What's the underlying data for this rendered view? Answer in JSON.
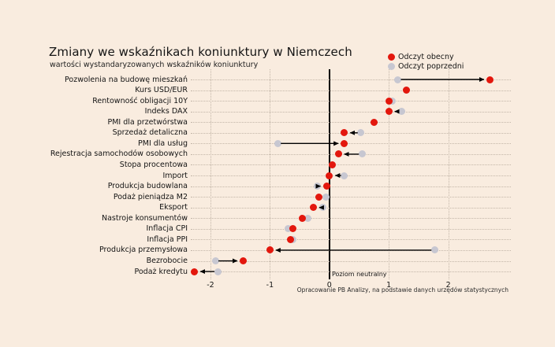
{
  "title": "Zmiany we wskaźnikach koniunktury w Niemczech",
  "subtitle": "wartości wystandaryzowanych wskaźników koniunktury",
  "legend": {
    "current": "Odczyt obecny",
    "previous": "Odczyt poprzedni"
  },
  "annotations": {
    "zero_line_label": "Poziom neutralny",
    "caption": "Opracowanie PB Analizy, na podstawie danych urzędów statystycznych"
  },
  "colors": {
    "background": "#f9ecdf",
    "current": "#e3170d",
    "previous": "#c7c7d1",
    "grid": "#c3b6a8",
    "zero_line": "#000000",
    "arrow": "#000000",
    "text": "#141414"
  },
  "chart_data": {
    "type": "scatter",
    "variant": "horizontal-dot-plot-with-change-arrows",
    "title": "Zmiany we wskaźnikach koniunktury w Niemczech",
    "subtitle": "wartości wystandaryzowanych wskaźników koniunktury",
    "xlabel": "",
    "ylabel": "",
    "xlim": [
      -2.35,
      3.0
    ],
    "xticks": [
      -2,
      -1,
      0,
      1,
      2
    ],
    "grid": "dotted",
    "legend_position": "top-right",
    "zero_line_label": "Poziom neutralny",
    "caption": "Opracowanie PB Analizy, na podstawie danych urzędów statystycznych",
    "categories": [
      "Pozwolenia na budowę mieszkań",
      "Kurs USD/EUR",
      "Rentowność obligacji 10Y",
      "Indeks DAX",
      "PMI dla przetwórstwa",
      "Sprzedaż detaliczna",
      "PMI dla usług",
      "Rejestracja samochodów osobowych",
      "Stopa procentowa",
      "Import",
      "Produkcja budowlana",
      "Podaż pieniądza M2",
      "Eksport",
      "Nastroje konsumentów",
      "Inflacja CPI",
      "Inflacja PPI",
      "Produkcja przemysłowa",
      "Bezrobocie",
      "Podaż kredytu"
    ],
    "series": [
      {
        "name": "Odczyt obecny",
        "color": "#e3170d",
        "values": [
          2.7,
          1.3,
          1.0,
          1.0,
          0.75,
          0.25,
          0.25,
          0.15,
          0.05,
          0.0,
          -0.05,
          -0.17,
          -0.27,
          -0.45,
          -0.62,
          -0.66,
          -1.0,
          -1.45,
          -2.27
        ]
      },
      {
        "name": "Odczyt poprzedni",
        "color": "#c7c7d1",
        "values": [
          1.15,
          1.3,
          1.06,
          1.22,
          0.75,
          0.53,
          -0.87,
          0.55,
          0.05,
          0.25,
          -0.2,
          -0.06,
          -0.11,
          -0.36,
          -0.7,
          -0.61,
          1.77,
          -1.92,
          -1.88
        ]
      }
    ],
    "arrow_from_previous_to_current": [
      true,
      false,
      false,
      true,
      false,
      true,
      true,
      true,
      false,
      true,
      true,
      false,
      true,
      false,
      false,
      false,
      true,
      true,
      true
    ]
  }
}
